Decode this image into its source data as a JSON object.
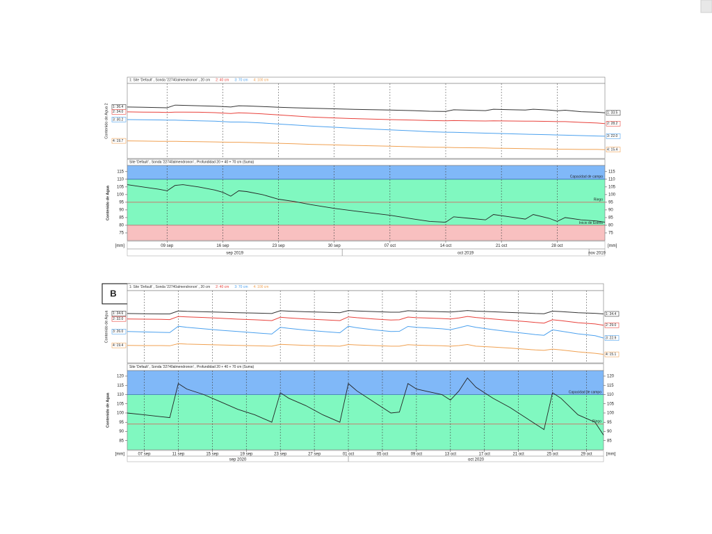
{
  "chart_data": [
    {
      "type": "line",
      "x": [
        247,
        249,
        251,
        252,
        253,
        254,
        256,
        258,
        259,
        260,
        261,
        262,
        264,
        266,
        268,
        270,
        273,
        276,
        280,
        283,
        285,
        287,
        288,
        290,
        292,
        293,
        295,
        297,
        298,
        300,
        301,
        302,
        304,
        306,
        307
      ],
      "xlim": [
        247,
        307
      ],
      "xticks": [
        {
          "value": 252,
          "label": "09 sep"
        },
        {
          "value": 259,
          "label": "16 sep"
        },
        {
          "value": 266,
          "label": "23 sep"
        },
        {
          "value": 273,
          "label": "30 sep"
        },
        {
          "value": 280,
          "label": "07 oct"
        },
        {
          "value": 287,
          "label": "14 oct"
        },
        {
          "value": 294,
          "label": "21 oct"
        },
        {
          "value": 301,
          "label": "28 oct"
        }
      ],
      "months": [
        {
          "label": "sep 2019",
          "from": 244,
          "to": 274
        },
        {
          "label": "oct 2019",
          "from": 274,
          "to": 305
        },
        {
          "label": "nov 2019",
          "from": 305,
          "to": 335
        }
      ],
      "upper": {
        "ylabel": "Contenido de Agua 2",
        "ylim": [
          11,
          48
        ],
        "series": [
          {
            "name": "1: Site 'Default' , Sonda '22740almendronon' , 20 cm",
            "color": "#333333",
            "start_label": "1: 36.4",
            "end_label": "1: 33.5",
            "values": [
              36.4,
              36.3,
              36.1,
              36.0,
              37.3,
              37.2,
              37.0,
              36.8,
              36.6,
              36.4,
              37.0,
              36.9,
              36.6,
              36.3,
              36.0,
              35.8,
              35.5,
              35.2,
              34.9,
              34.6,
              34.3,
              34.2,
              35.0,
              34.8,
              34.6,
              35.3,
              35.1,
              34.9,
              35.3,
              34.9,
              34.5,
              34.8,
              34.1,
              33.8,
              33.5
            ]
          },
          {
            "name": "2: 40 cm",
            "color": "#e8403a",
            "start_label": "2: 34.0",
            "end_label": "2: 28.2",
            "values": [
              34.0,
              33.9,
              33.8,
              33.7,
              33.9,
              33.9,
              33.8,
              33.6,
              33.4,
              33.2,
              33.5,
              33.4,
              33.0,
              32.5,
              32.0,
              31.5,
              31.0,
              30.6,
              30.2,
              29.9,
              29.7,
              29.6,
              29.7,
              29.6,
              29.5,
              29.6,
              29.5,
              29.4,
              29.4,
              29.3,
              29.2,
              29.2,
              28.8,
              28.5,
              28.2
            ]
          },
          {
            "name": "3: 70 cm",
            "color": "#4aa0ee",
            "start_label": "3: 30.2",
            "end_label": "3: 22.0",
            "values": [
              30.2,
              30.1,
              30.0,
              29.9,
              29.9,
              29.8,
              29.6,
              29.4,
              29.2,
              29.0,
              29.0,
              28.9,
              28.5,
              28.0,
              27.5,
              27.0,
              26.4,
              25.8,
              25.1,
              24.6,
              24.2,
              24.0,
              23.9,
              23.7,
              23.5,
              23.4,
              23.2,
              23.0,
              22.9,
              22.7,
              22.6,
              22.5,
              22.3,
              22.1,
              22.0
            ]
          },
          {
            "name": "4: 100 cm",
            "color": "#f0a050",
            "start_label": "4: 19.7",
            "end_label": "4: 15.4",
            "values": [
              19.7,
              19.6,
              19.5,
              19.5,
              19.5,
              19.4,
              19.3,
              19.2,
              19.1,
              19.0,
              19.0,
              18.9,
              18.7,
              18.5,
              18.3,
              18.0,
              17.7,
              17.4,
              17.1,
              16.8,
              16.6,
              16.5,
              16.4,
              16.3,
              16.2,
              16.1,
              16.0,
              15.9,
              15.8,
              15.7,
              15.6,
              15.6,
              15.5,
              15.5,
              15.4
            ]
          }
        ]
      },
      "lower": {
        "ylabel": "Contenido de Agua",
        "unit": "[mm]",
        "ylim": [
          70,
          119
        ],
        "yticks": [
          75,
          80,
          85,
          90,
          95,
          100,
          105,
          110,
          115
        ],
        "bands": [
          {
            "from": 110,
            "to": 119,
            "color": "#80b8f8"
          },
          {
            "from": 80,
            "to": 110,
            "color": "#80f8c0"
          },
          {
            "from": 70,
            "to": 80,
            "color": "#f8c0c0"
          }
        ],
        "thresholds": [
          {
            "value": 110,
            "label": "Capacidad de campo",
            "color": "#3a6fb0"
          },
          {
            "value": 95,
            "label": "Riego",
            "color": "#e05050"
          },
          {
            "value": 80,
            "label": "Inicio de Estrés",
            "color": "#c07070"
          }
        ],
        "series": [
          {
            "name": "Site 'Default' , Sonda '22740almendronon' , Profundidad 20 + 40 + 70 cm (Suma)",
            "color": "#222222",
            "values": [
              106.5,
              105,
              103.5,
              102.5,
              106,
              106.5,
              105,
              103,
              101.5,
              99,
              102.5,
              102,
              100,
              97,
              95.5,
              93.5,
              91,
              89,
              86.5,
              84,
              82.5,
              82,
              85.5,
              84.5,
              83.5,
              87,
              85.5,
              84,
              87,
              84.5,
              82.5,
              85,
              83.5,
              82.8,
              82
            ]
          }
        ]
      }
    },
    {
      "type": "line",
      "label": "B",
      "x": [
        249,
        251,
        253,
        254,
        255,
        256,
        258,
        260,
        262,
        264,
        266,
        267,
        268,
        270,
        272,
        274,
        275,
        276,
        278,
        280,
        281,
        282,
        283,
        284,
        286,
        287,
        288,
        289,
        290,
        292,
        294,
        296,
        297,
        298,
        299,
        300,
        302,
        304,
        305
      ],
      "xlim": [
        249,
        305
      ],
      "xticks": [
        {
          "value": 251,
          "label": "07 sep"
        },
        {
          "value": 255,
          "label": "11 sep"
        },
        {
          "value": 259,
          "label": "15 sep"
        },
        {
          "value": 263,
          "label": "19 sep"
        },
        {
          "value": 267,
          "label": "23 sep"
        },
        {
          "value": 271,
          "label": "27 sep"
        },
        {
          "value": 275,
          "label": "01 oct"
        },
        {
          "value": 279,
          "label": "05 oct"
        },
        {
          "value": 283,
          "label": "09 oct"
        },
        {
          "value": 287,
          "label": "13 oct"
        },
        {
          "value": 291,
          "label": "17 oct"
        },
        {
          "value": 295,
          "label": "21 oct"
        },
        {
          "value": 299,
          "label": "25 oct"
        },
        {
          "value": 303,
          "label": "29 oct"
        }
      ],
      "months": [
        {
          "label": "sep 2020",
          "from": 245,
          "to": 275
        },
        {
          "label": "oct 2020",
          "from": 275,
          "to": 306
        }
      ],
      "upper": {
        "ylabel": "Contenido de Agua",
        "ylim": [
          11,
          45.5
        ],
        "series": [
          {
            "name": "1: Site 'Default' , Sonda '22740almendronon' , 20 cm",
            "color": "#333333",
            "start_label": "1: 34.6",
            "end_label": "1: 34.4",
            "values": [
              34.6,
              34.5,
              34.4,
              34.4,
              35.8,
              35.6,
              35.4,
              35.2,
              35.0,
              34.8,
              34.6,
              35.9,
              35.7,
              35.4,
              35.2,
              35.0,
              36.0,
              35.8,
              35.5,
              35.2,
              35.2,
              35.9,
              35.7,
              35.6,
              35.4,
              35.3,
              35.6,
              36.0,
              35.7,
              35.4,
              35.1,
              34.8,
              34.6,
              34.5,
              35.7,
              35.5,
              35.0,
              34.7,
              34.4
            ]
          },
          {
            "name": "2: 40 cm",
            "color": "#e8403a",
            "start_label": "2: 32.0",
            "end_label": "2: 29.0",
            "values": [
              32.0,
              31.9,
              31.8,
              31.7,
              33.2,
              33.0,
              32.7,
              32.3,
              31.9,
              31.6,
              31.2,
              32.8,
              32.5,
              32.0,
              31.6,
              31.2,
              33.0,
              32.6,
              32.0,
              31.5,
              31.6,
              32.9,
              32.6,
              32.5,
              32.2,
              32.0,
              32.5,
              33.2,
              32.7,
              32.0,
              31.3,
              30.7,
              30.3,
              30.0,
              31.6,
              31.2,
              30.2,
              29.6,
              29.0
            ]
          },
          {
            "name": "3: 70 cm",
            "color": "#4aa0ee",
            "start_label": "3: 26.0",
            "end_label": "3: 22.9",
            "values": [
              26.0,
              25.8,
              25.6,
              25.5,
              28.5,
              28.0,
              27.3,
              26.6,
              26.0,
              25.4,
              24.8,
              28.0,
              27.5,
              26.7,
              26.0,
              25.4,
              28.5,
              27.8,
              26.8,
              26.0,
              26.1,
              28.4,
              28.0,
              27.8,
              27.3,
              26.9,
              27.8,
              28.8,
              28.0,
              26.9,
              25.9,
              25.0,
              24.5,
              24.2,
              26.8,
              26.2,
              24.9,
              24.0,
              22.9
            ]
          },
          {
            "name": "4: 100 cm",
            "color": "#f0a050",
            "start_label": "4: 19.4",
            "end_label": "4: 15.1",
            "values": [
              19.4,
              19.3,
              19.3,
              19.2,
              20.2,
              20.0,
              19.8,
              19.6,
              19.4,
              19.2,
              19.0,
              19.9,
              19.7,
              19.4,
              19.2,
              19.0,
              19.8,
              19.6,
              19.3,
              19.0,
              19.0,
              19.7,
              19.5,
              19.4,
              19.2,
              19.0,
              19.3,
              19.8,
              19.0,
              18.6,
              18.1,
              17.5,
              17.2,
              17.0,
              17.6,
              17.2,
              16.3,
              15.6,
              15.1
            ]
          }
        ]
      },
      "lower": {
        "ylabel": "Contenido de Agua",
        "unit": "[mm]",
        "ylim": [
          80,
          123
        ],
        "yticks": [
          85,
          90,
          95,
          100,
          105,
          110,
          115,
          120
        ],
        "bands": [
          {
            "from": 110,
            "to": 123,
            "color": "#80b8f8"
          },
          {
            "from": 80,
            "to": 110,
            "color": "#80f8c0"
          }
        ],
        "thresholds": [
          {
            "value": 110,
            "label": "Capacidad de campo",
            "color": "#3a6fb0"
          },
          {
            "value": 94,
            "label": "Riego",
            "color": "#e05050"
          }
        ],
        "series": [
          {
            "name": "Site 'Default' , Sonda '22740almendronon' , Profundidad 20 + 40 + 70 cm (Suma)",
            "color": "#222222",
            "values": [
              100,
              99,
              98,
              97.5,
              116,
              113,
              110,
              106,
              102,
              99,
              95,
              111,
              108,
              104,
              99,
              95,
              116,
              112,
              106,
              100,
              100.5,
              116,
              113,
              112,
              110,
              107,
              112,
              119,
              114,
              108,
              103,
              97,
              94,
              91,
              111,
              108,
              99,
              95,
              88
            ]
          }
        ]
      }
    }
  ]
}
